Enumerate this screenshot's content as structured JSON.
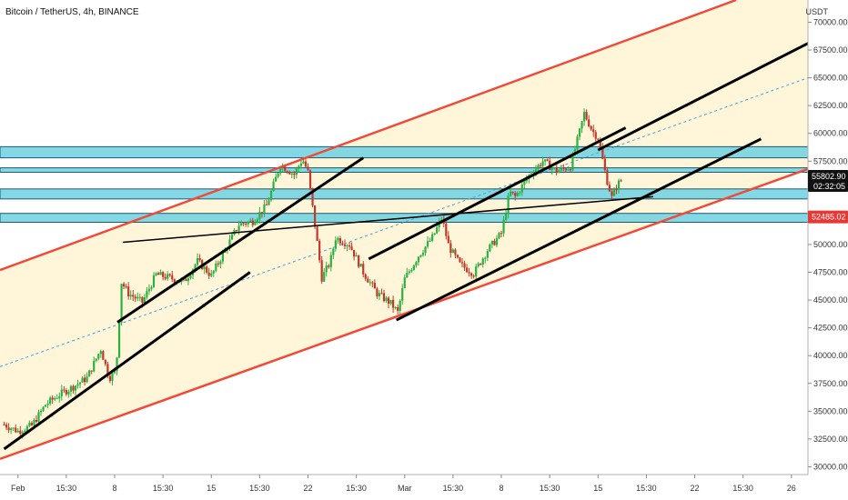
{
  "chart_data": {
    "type": "candlestick",
    "title": "Bitcoin / TetherUS, 4h, BINANCE",
    "currency": "USDT",
    "y_ticks": [
      30000,
      32500,
      35000,
      37500,
      40000,
      42500,
      45000,
      47500,
      50000,
      52500,
      55000,
      57500,
      60000,
      62500,
      65000,
      67500,
      70000
    ],
    "y_tick_labels": [
      "30000.00",
      "32500.00",
      "35000.00",
      "37500.00",
      "40000.00",
      "42500.00",
      "45000.00",
      "47500.00",
      "50000.00",
      "52500.00",
      "55000.00",
      "57500.00",
      "60000.00",
      "62500.00",
      "65000.00",
      "67500.00",
      "70000.00"
    ],
    "ylim": [
      29300,
      72000
    ],
    "x_ticks": [
      {
        "day": 1,
        "label": "Feb"
      },
      {
        "day": 4.5,
        "label": "15:30"
      },
      {
        "day": 8,
        "label": "8"
      },
      {
        "day": 11.5,
        "label": "15:30"
      },
      {
        "day": 15,
        "label": "15"
      },
      {
        "day": 18.5,
        "label": "15:30"
      },
      {
        "day": 22,
        "label": "22"
      },
      {
        "day": 25.5,
        "label": "15:30"
      },
      {
        "day": 29,
        "label": "Mar"
      },
      {
        "day": 32.5,
        "label": "15:30"
      },
      {
        "day": 36,
        "label": "8"
      },
      {
        "day": 39.5,
        "label": "15:30"
      },
      {
        "day": 43,
        "label": "15"
      },
      {
        "day": 46.5,
        "label": "15:30"
      },
      {
        "day": 50,
        "label": "22"
      },
      {
        "day": 53.5,
        "label": "15:30"
      },
      {
        "day": 57,
        "label": "26"
      }
    ],
    "x_range_days": [
      -0.3,
      58.2
    ],
    "price_path": [
      [
        0,
        33800
      ],
      [
        1,
        33200
      ],
      [
        2,
        33700
      ],
      [
        3,
        35600
      ],
      [
        4,
        36500
      ],
      [
        5,
        37200
      ],
      [
        6,
        38000
      ],
      [
        7,
        40600
      ],
      [
        7.6,
        38000
      ],
      [
        8.1,
        38600
      ],
      [
        8.5,
        46600
      ],
      [
        9,
        45600
      ],
      [
        10,
        44800
      ],
      [
        11,
        47300
      ],
      [
        12,
        47000
      ],
      [
        13,
        46600
      ],
      [
        14,
        48500
      ],
      [
        15,
        47200
      ],
      [
        16,
        49500
      ],
      [
        17,
        51800
      ],
      [
        18,
        52100
      ],
      [
        19,
        53500
      ],
      [
        20,
        57200
      ],
      [
        21,
        56300
      ],
      [
        21.6,
        57700
      ],
      [
        22,
        56500
      ],
      [
        23,
        47000
      ],
      [
        23.6,
        48400
      ],
      [
        24,
        50600
      ],
      [
        25,
        50000
      ],
      [
        26,
        47500
      ],
      [
        27,
        45600
      ],
      [
        28,
        44700
      ],
      [
        28.5,
        43900
      ],
      [
        29,
        46900
      ],
      [
        30,
        49000
      ],
      [
        31,
        50600
      ],
      [
        31.7,
        52400
      ],
      [
        32.2,
        49800
      ],
      [
        33,
        48200
      ],
      [
        34,
        47400
      ],
      [
        35,
        49500
      ],
      [
        36,
        51000
      ],
      [
        36.6,
        54700
      ],
      [
        37,
        54300
      ],
      [
        38,
        56200
      ],
      [
        39,
        57500
      ],
      [
        40,
        56600
      ],
      [
        41,
        57000
      ],
      [
        41.7,
        60300
      ],
      [
        42,
        61800
      ],
      [
        42.6,
        60200
      ],
      [
        43,
        59600
      ],
      [
        43.6,
        56000
      ],
      [
        44,
        54200
      ],
      [
        44.4,
        55400
      ],
      [
        44.7,
        55802.9
      ]
    ],
    "current_price": {
      "label": "55802.90",
      "countdown": "02:32:05"
    },
    "alert_price": {
      "label": "52485.02"
    },
    "horizontal_zones": [
      {
        "from": 57800,
        "to": 58800
      },
      {
        "from": 56500,
        "to": 56900
      },
      {
        "from": 54100,
        "to": 55000
      },
      {
        "from": 52000,
        "to": 52800
      }
    ],
    "ascending_channel": {
      "lower": [
        [
          -0.3,
          30700
        ],
        [
          58.2,
          56800
        ]
      ],
      "upper": [
        [
          -0.3,
          47700
        ],
        [
          53,
          72000
        ]
      ],
      "mid": [
        [
          -0.3,
          39000
        ],
        [
          58.2,
          65000
        ]
      ]
    },
    "trend_lines": [
      {
        "points": [
          [
            0,
            31600
          ],
          [
            17.8,
            47500
          ]
        ]
      },
      {
        "points": [
          [
            8.2,
            43000
          ],
          [
            26,
            57800
          ]
        ]
      },
      {
        "points": [
          [
            8.6,
            50200
          ],
          [
            47,
            54300
          ]
        ]
      },
      {
        "points": [
          [
            26.4,
            48700
          ],
          [
            45,
            60500
          ]
        ]
      },
      {
        "points": [
          [
            28.4,
            43200
          ],
          [
            54.8,
            59500
          ]
        ]
      },
      {
        "points": [
          [
            43,
            58500
          ],
          [
            58.2,
            68100
          ]
        ]
      }
    ],
    "colors": {
      "up": "#26a69a",
      "up_body": "#2bb041",
      "down": "#c0392b",
      "channel": "#f04a3a",
      "channel_fill": "#fff6d9",
      "zone_fill": "#6fd1e0",
      "zone_edge": "#1c5c70",
      "mid_line": "#4aa3df",
      "badge_price": "#111111",
      "badge_alert": "#e53935"
    }
  }
}
